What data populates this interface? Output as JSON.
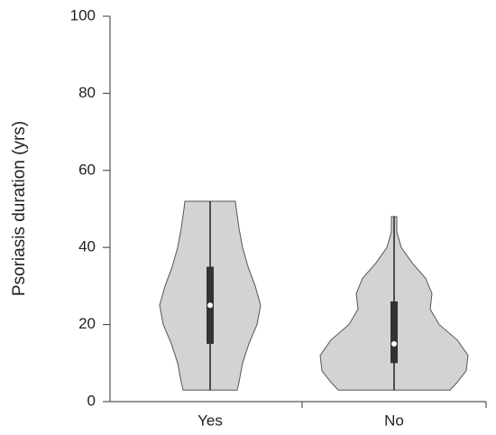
{
  "chart_data": {
    "type": "violin",
    "y_label": "Psoriasis duration (yrs)",
    "categories": [
      "Yes",
      "No"
    ],
    "ylim": [
      0,
      100
    ],
    "yticks": [
      0,
      20,
      40,
      60,
      80,
      100
    ],
    "color": "#d3d3d3",
    "groups": [
      {
        "min": 3,
        "q1": 15,
        "median": 25,
        "q3": 35,
        "max": 52,
        "levels": [
          3,
          5,
          10,
          15,
          20,
          25,
          30,
          35,
          40,
          45,
          50,
          52
        ],
        "density": [
          0.3,
          0.32,
          0.36,
          0.43,
          0.52,
          0.56,
          0.5,
          0.42,
          0.36,
          0.32,
          0.29,
          0.28
        ]
      },
      {
        "min": 3,
        "q1": 10,
        "median": 15,
        "q3": 26,
        "max": 48,
        "levels": [
          3,
          5,
          8,
          12,
          16,
          20,
          24,
          28,
          32,
          36,
          40,
          44,
          46,
          48
        ],
        "density": [
          0.62,
          0.7,
          0.8,
          0.82,
          0.7,
          0.5,
          0.4,
          0.42,
          0.35,
          0.2,
          0.08,
          0.03,
          0.03,
          0.03
        ]
      }
    ]
  }
}
